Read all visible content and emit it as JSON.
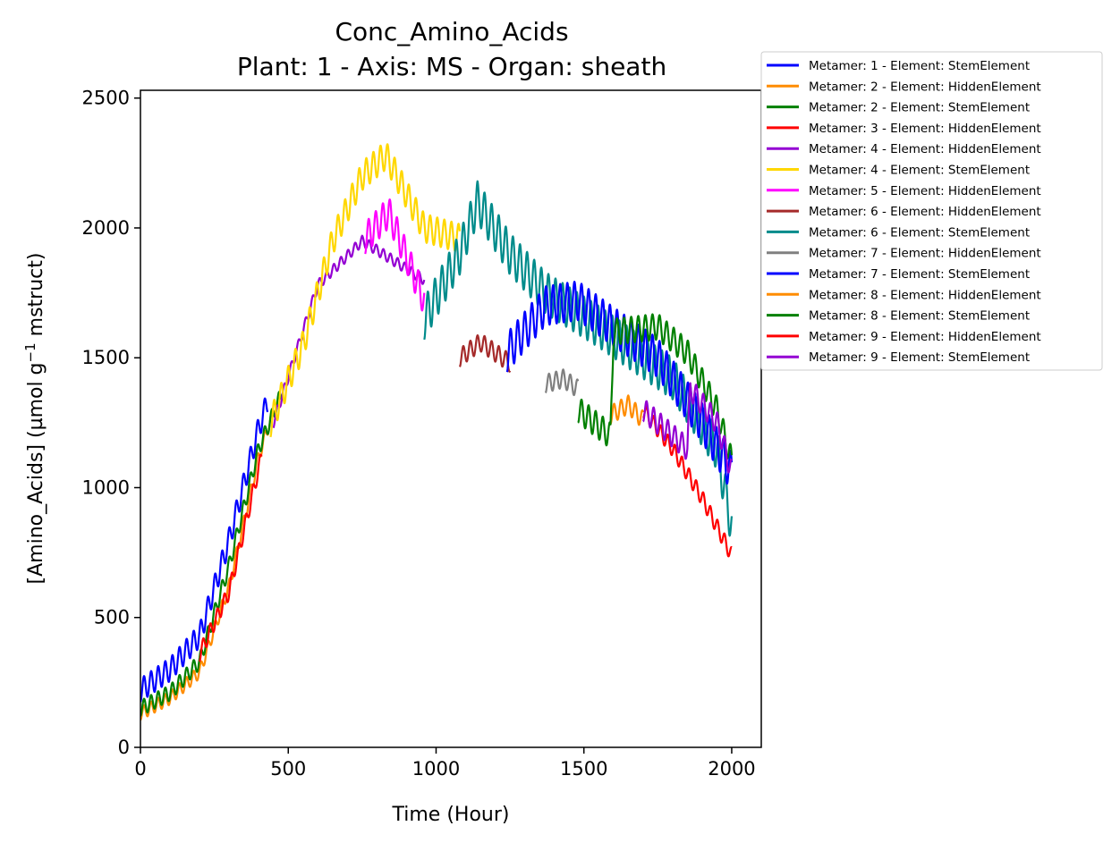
{
  "chart_data": {
    "type": "line",
    "title": "Conc_Amino_Acids",
    "subtitle": "Plant: 1 - Axis: MS - Organ: sheath",
    "xlabel": "Time (Hour)",
    "ylabel_main": "[Amino_Acids] (µmol g",
    "ylabel_sup": "−1",
    "ylabel_tail": " mstruct)",
    "xlim": [
      0,
      2100
    ],
    "ylim": [
      0,
      2530
    ],
    "xticks": [
      0,
      500,
      1000,
      1500,
      2000
    ],
    "yticks": [
      0,
      500,
      1000,
      1500,
      2000,
      2500
    ],
    "legend_position": "outside-right-top",
    "grid": false,
    "series": [
      {
        "name": "Metamer: 1 - Element: StemElement",
        "color": "#0000ff",
        "points": [
          [
            0,
            220
          ],
          [
            100,
            300
          ],
          [
            200,
            430
          ],
          [
            300,
            800
          ],
          [
            400,
            1230
          ],
          [
            430,
            1330
          ]
        ],
        "amp": 90
      },
      {
        "name": "Metamer: 2 - Element: HiddenElement",
        "color": "#ff8c00",
        "points": [
          [
            0,
            130
          ],
          [
            100,
            190
          ],
          [
            200,
            290
          ],
          [
            300,
            620
          ],
          [
            400,
            1120
          ],
          [
            460,
            1330
          ]
        ],
        "amp": 50
      },
      {
        "name": "Metamer: 2 - Element: StemElement",
        "color": "#008000",
        "points": [
          [
            0,
            150
          ],
          [
            100,
            210
          ],
          [
            200,
            330
          ],
          [
            300,
            700
          ],
          [
            400,
            1150
          ],
          [
            480,
            1370
          ]
        ],
        "amp": 60
      },
      {
        "name": "Metamer: 3 - Element: HiddenElement",
        "color": "#ff0000",
        "points": [
          [
            200,
            360
          ],
          [
            300,
            600
          ],
          [
            410,
            1120
          ]
        ],
        "amp": 60
      },
      {
        "name": "Metamer: 4 - Element: HiddenElement",
        "color": "#9400d3",
        "points": [
          [
            450,
            1250
          ],
          [
            600,
            1780
          ],
          [
            750,
            1950
          ],
          [
            960,
            1800
          ]
        ],
        "amp": 40
      },
      {
        "name": "Metamer: 4 - Element: StemElement",
        "color": "#ffd700",
        "points": [
          [
            440,
            1250
          ],
          [
            550,
            1550
          ],
          [
            650,
            1950
          ],
          [
            750,
            2200
          ],
          [
            830,
            2280
          ],
          [
            960,
            2000
          ],
          [
            1080,
            1960
          ]
        ],
        "amp": 110
      },
      {
        "name": "Metamer: 5 - Element: HiddenElement",
        "color": "#ff00ff",
        "points": [
          [
            760,
            1960
          ],
          [
            840,
            2060
          ],
          [
            960,
            1720
          ]
        ],
        "amp": 120
      },
      {
        "name": "Metamer: 6 - Element: HiddenElement",
        "color": "#a52a2a",
        "points": [
          [
            1080,
            1500
          ],
          [
            1150,
            1560
          ],
          [
            1250,
            1480
          ]
        ],
        "amp": 70
      },
      {
        "name": "Metamer: 6 - Element: StemElement",
        "color": "#008b8b",
        "points": [
          [
            960,
            1650
          ],
          [
            1080,
            1900
          ],
          [
            1140,
            2100
          ],
          [
            1250,
            1900
          ],
          [
            1370,
            1750
          ],
          [
            1550,
            1620
          ],
          [
            1800,
            1420
          ],
          [
            1950,
            1150
          ],
          [
            2000,
            850
          ]
        ],
        "amp": 160
      },
      {
        "name": "Metamer: 7 - Element: HiddenElement",
        "color": "#808080",
        "points": [
          [
            1370,
            1400
          ],
          [
            1430,
            1420
          ],
          [
            1480,
            1380
          ]
        ],
        "amp": 70
      },
      {
        "name": "Metamer: 7 - Element: StemElement",
        "color": "#0000ff",
        "points": [
          [
            1240,
            1520
          ],
          [
            1370,
            1700
          ],
          [
            1480,
            1720
          ],
          [
            1600,
            1620
          ],
          [
            1750,
            1500
          ],
          [
            1900,
            1250
          ],
          [
            2000,
            1060
          ]
        ],
        "amp": 150
      },
      {
        "name": "Metamer: 8 - Element: HiddenElement",
        "color": "#ff8c00",
        "points": [
          [
            1590,
            1280
          ],
          [
            1650,
            1320
          ],
          [
            1700,
            1260
          ]
        ],
        "amp": 70
      },
      {
        "name": "Metamer: 8 - Element: StemElement",
        "color": "#008000",
        "points": [
          [
            1480,
            1300
          ],
          [
            1590,
            1200
          ],
          [
            1600,
            1600
          ],
          [
            1750,
            1620
          ],
          [
            1850,
            1520
          ],
          [
            1950,
            1300
          ],
          [
            2000,
            1100
          ]
        ],
        "amp": 100
      },
      {
        "name": "Metamer: 9 - Element: HiddenElement",
        "color": "#ff0000",
        "points": [
          [
            1700,
            1300
          ],
          [
            1800,
            1150
          ],
          [
            1900,
            960
          ],
          [
            2000,
            740
          ]
        ],
        "amp": 60
      },
      {
        "name": "Metamer: 9 - Element: StemElement",
        "color": "#9400d3",
        "points": [
          [
            1700,
            1300
          ],
          [
            1850,
            1150
          ],
          [
            1860,
            1380
          ],
          [
            1950,
            1250
          ],
          [
            2000,
            1060
          ]
        ],
        "amp": 90
      }
    ]
  }
}
